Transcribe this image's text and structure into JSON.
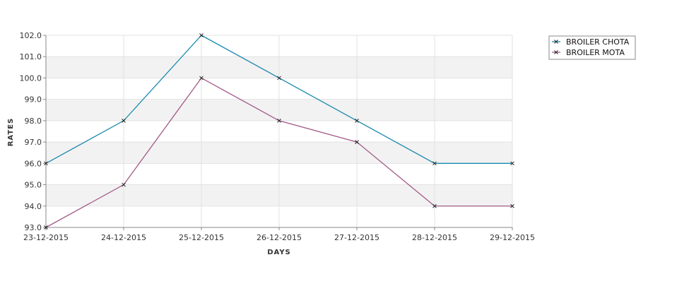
{
  "chart_data": {
    "type": "line",
    "xlabel": "DAYS",
    "ylabel": "RATES",
    "categories": [
      "23-12-2015",
      "24-12-2015",
      "25-12-2015",
      "26-12-2015",
      "27-12-2015",
      "28-12-2015",
      "29-12-2015"
    ],
    "ylim": [
      93.0,
      102.0
    ],
    "yticks": [
      "93.0",
      "94.0",
      "95.0",
      "96.0",
      "97.0",
      "98.0",
      "99.0",
      "100.0",
      "101.0",
      "102.0"
    ],
    "grid": true,
    "alternating_bands": true,
    "legend": "top-right",
    "series": [
      {
        "name": "BROILER CHOTA",
        "color": "#1a8aad",
        "values": [
          96,
          98,
          102,
          100,
          98,
          96,
          96
        ]
      },
      {
        "name": "BROILER MOTA",
        "color": "#a35a87",
        "values": [
          93,
          95,
          100,
          98,
          97,
          94,
          94
        ]
      }
    ]
  }
}
